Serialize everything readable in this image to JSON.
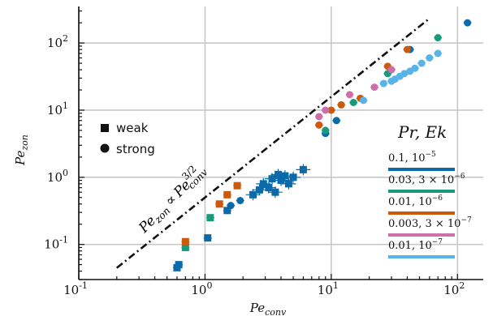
{
  "chart_data": {
    "type": "scatter",
    "xlabel": {
      "base": "Pe",
      "sub": "conv"
    },
    "ylabel": {
      "base": "Pe",
      "sub": "zon"
    },
    "xscale": "log",
    "yscale": "log",
    "xlim": [
      0.1,
      160
    ],
    "ylim": [
      0.03,
      350
    ],
    "grid": true,
    "xticks": [
      {
        "value": 0.1,
        "base": "10",
        "exp": "-1"
      },
      {
        "value": 1,
        "base": "10",
        "exp": "0"
      },
      {
        "value": 10,
        "base": "10",
        "exp": "1"
      },
      {
        "value": 100,
        "base": "10",
        "exp": "2"
      }
    ],
    "yticks": [
      {
        "value": 0.1,
        "base": "10",
        "exp": "-1"
      },
      {
        "value": 1,
        "base": "10",
        "exp": "0"
      },
      {
        "value": 10,
        "base": "10",
        "exp": "1"
      },
      {
        "value": 100,
        "base": "10",
        "exp": "2"
      }
    ],
    "scaling_line": {
      "label_lhs": {
        "base": "Pe",
        "sub": "zon"
      },
      "label_rel": "∝",
      "label_rhs": {
        "base": "Pe",
        "sub": "conv",
        "sup": "3/2"
      },
      "exponent": 1.5,
      "x_range": [
        0.2,
        60
      ],
      "anchor": [
        1,
        0.5
      ]
    },
    "marker_legend": [
      {
        "shape": "square",
        "label": "weak"
      },
      {
        "shape": "circle",
        "label": "strong"
      }
    ],
    "legend_title": "Pr, Ek",
    "series": [
      {
        "name": "0.1, 10^{-5}",
        "label_parts": {
          "a": "0.1, ",
          "b": "10",
          "exp": "−5"
        },
        "color": "#0a6aaa",
        "points": [
          {
            "x": 0.6,
            "y": 0.045,
            "m": "s"
          },
          {
            "x": 0.62,
            "y": 0.05,
            "m": "s"
          },
          {
            "x": 1.05,
            "y": 0.125,
            "m": "s"
          },
          {
            "x": 1.5,
            "y": 0.32,
            "m": "s"
          },
          {
            "x": 1.6,
            "y": 0.38,
            "m": "c"
          },
          {
            "x": 1.9,
            "y": 0.45,
            "m": "c"
          },
          {
            "x": 2.4,
            "y": 0.55,
            "m": "s"
          },
          {
            "x": 2.7,
            "y": 0.65,
            "m": "s"
          },
          {
            "x": 2.9,
            "y": 0.8,
            "m": "s"
          },
          {
            "x": 3.2,
            "y": 0.7,
            "m": "s"
          },
          {
            "x": 3.4,
            "y": 0.95,
            "m": "s"
          },
          {
            "x": 3.6,
            "y": 0.6,
            "m": "s"
          },
          {
            "x": 3.8,
            "y": 1.1,
            "m": "s"
          },
          {
            "x": 4.0,
            "y": 0.9,
            "m": "s"
          },
          {
            "x": 4.3,
            "y": 1.05,
            "m": "s"
          },
          {
            "x": 4.6,
            "y": 0.8,
            "m": "s"
          },
          {
            "x": 5.0,
            "y": 1.0,
            "m": "s"
          },
          {
            "x": 6.0,
            "y": 1.3,
            "m": "s"
          },
          {
            "x": 9.0,
            "y": 4.5,
            "m": "c"
          },
          {
            "x": 11.0,
            "y": 7.0,
            "m": "c"
          },
          {
            "x": 42.0,
            "y": 80.0,
            "m": "c"
          },
          {
            "x": 120.0,
            "y": 200.0,
            "m": "c"
          }
        ]
      },
      {
        "name": "0.03, 3×10^{-6}",
        "label_parts": {
          "a": "0.03, ",
          "b": "3 × 10",
          "exp": "−6"
        },
        "color": "#179b7a",
        "points": [
          {
            "x": 0.7,
            "y": 0.09,
            "m": "s"
          },
          {
            "x": 1.1,
            "y": 0.25,
            "m": "s"
          },
          {
            "x": 9.0,
            "y": 5.0,
            "m": "c"
          },
          {
            "x": 15.0,
            "y": 13.0,
            "m": "c"
          },
          {
            "x": 28.0,
            "y": 35.0,
            "m": "c"
          },
          {
            "x": 70.0,
            "y": 120.0,
            "m": "c"
          }
        ]
      },
      {
        "name": "0.01, 10^{-6}",
        "label_parts": {
          "a": "0.01, ",
          "b": "10",
          "exp": "−6"
        },
        "color": "#cc5a0c",
        "points": [
          {
            "x": 0.7,
            "y": 0.11,
            "m": "s"
          },
          {
            "x": 1.3,
            "y": 0.4,
            "m": "s"
          },
          {
            "x": 1.5,
            "y": 0.55,
            "m": "s"
          },
          {
            "x": 1.8,
            "y": 0.75,
            "m": "s"
          },
          {
            "x": 8.0,
            "y": 6.0,
            "m": "c"
          },
          {
            "x": 10.0,
            "y": 10.0,
            "m": "c"
          },
          {
            "x": 12.0,
            "y": 12.0,
            "m": "c"
          },
          {
            "x": 17.0,
            "y": 15.0,
            "m": "c"
          },
          {
            "x": 28.0,
            "y": 45.0,
            "m": "c"
          },
          {
            "x": 40.0,
            "y": 80.0,
            "m": "c"
          }
        ]
      },
      {
        "name": "0.003, 3×10^{-7}",
        "label_parts": {
          "a": "0.003, ",
          "b": "3 × 10",
          "exp": "−7"
        },
        "color": "#cc70aa",
        "points": [
          {
            "x": 8.0,
            "y": 8.0,
            "m": "c"
          },
          {
            "x": 9.0,
            "y": 10.0,
            "m": "c"
          },
          {
            "x": 14.0,
            "y": 17.0,
            "m": "c"
          },
          {
            "x": 22.0,
            "y": 22.0,
            "m": "c"
          },
          {
            "x": 30.0,
            "y": 40.0,
            "m": "c"
          }
        ]
      },
      {
        "name": "0.01, 10^{-7}",
        "label_parts": {
          "a": "0.01, ",
          "b": "10",
          "exp": "−7"
        },
        "color": "#58b4e8",
        "points": [
          {
            "x": 18.0,
            "y": 14.0,
            "m": "c"
          },
          {
            "x": 26.0,
            "y": 25.0,
            "m": "c"
          },
          {
            "x": 30.0,
            "y": 27.0,
            "m": "c"
          },
          {
            "x": 32.0,
            "y": 29.0,
            "m": "c"
          },
          {
            "x": 35.0,
            "y": 32.0,
            "m": "c"
          },
          {
            "x": 38.0,
            "y": 35.0,
            "m": "c"
          },
          {
            "x": 42.0,
            "y": 38.0,
            "m": "c"
          },
          {
            "x": 46.0,
            "y": 42.0,
            "m": "c"
          },
          {
            "x": 52.0,
            "y": 50.0,
            "m": "c"
          },
          {
            "x": 60.0,
            "y": 60.0,
            "m": "c"
          },
          {
            "x": 70.0,
            "y": 70.0,
            "m": "c"
          }
        ]
      }
    ]
  }
}
